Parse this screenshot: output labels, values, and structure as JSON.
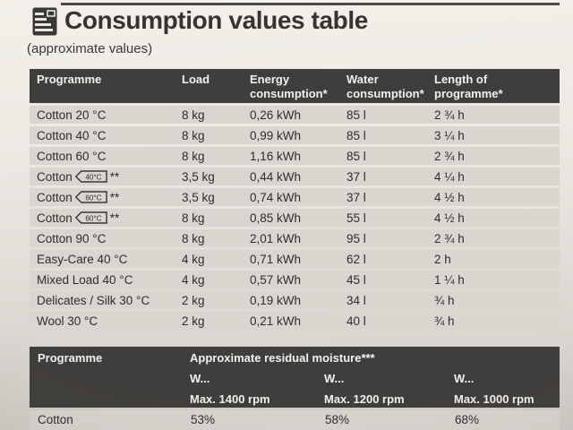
{
  "palette": {
    "header_bg": "#403e3c",
    "header_text": "#f3f1ee",
    "row_bg": "#d9d6d0",
    "page_bg": "#e8e5df",
    "text": "#2e2d2b"
  },
  "title": "Consumption values table",
  "subtitle": "(approximate values)",
  "consumption_table": {
    "headers": [
      "Programme",
      "Load",
      "Energy\nconsumption*",
      "Water\nconsumption*",
      "Length of\nprogramme*"
    ],
    "rows": [
      {
        "programme": "Cotton 20 °C",
        "load": "8 kg",
        "energy": "0,26 kWh",
        "water": "85 l",
        "length": "2 ¾ h"
      },
      {
        "programme": "Cotton 40 °C",
        "load": "8 kg",
        "energy": "0,99 kWh",
        "water": "85 l",
        "length": "3 ¼ h"
      },
      {
        "programme": "Cotton 60 °C",
        "load": "8 kg",
        "energy": "1,16 kWh",
        "water": "85 l",
        "length": "2 ¾ h"
      },
      {
        "programme": "Cotton",
        "tag": "40°C",
        "suffix": "**",
        "load": "3,5 kg",
        "energy": "0,44 kWh",
        "water": "37 l",
        "length": "4 ¼ h"
      },
      {
        "programme": "Cotton",
        "tag": "60°C",
        "suffix": "**",
        "load": "3,5 kg",
        "energy": "0,74 kWh",
        "water": "37 l",
        "length": "4 ½ h"
      },
      {
        "programme": "Cotton",
        "tag": "60°C",
        "suffix": "**",
        "load": "8 kg",
        "energy": "0,85 kWh",
        "water": "55 l",
        "length": "4 ½ h"
      },
      {
        "programme": "Cotton 90 °C",
        "load": "8 kg",
        "energy": "2,01 kWh",
        "water": "95 l",
        "length": "2 ¾ h"
      },
      {
        "programme": "Easy-Care 40 °C",
        "load": "4 kg",
        "energy": "0,71 kWh",
        "water": "62 l",
        "length": "2 h"
      },
      {
        "programme": "Mixed Load 40 °C",
        "load": "4 kg",
        "energy": "0,57 kWh",
        "water": "45 l",
        "length": "1 ¼ h"
      },
      {
        "programme": "Delicates / Silk 30 °C",
        "load": "2 kg",
        "energy": "0,19 kWh",
        "water": "34 l",
        "length": "¾ h"
      },
      {
        "programme": "Wool 30 °C",
        "load": "2 kg",
        "energy": "0,21 kWh",
        "water": "40 l",
        "length": "¾ h"
      }
    ]
  },
  "moisture_table": {
    "programme_header": "Programme",
    "group_header": "Approximate residual moisture***",
    "sub_headers": [
      {
        "w": "W...",
        "max": "Max. 1400 rpm"
      },
      {
        "w": "W...",
        "max": "Max. 1200 rpm"
      },
      {
        "w": "W...",
        "max": "Max. 1000 rpm"
      }
    ],
    "rows": [
      {
        "programme": "Cotton",
        "values": [
          "53%",
          "58%",
          "68%"
        ]
      }
    ]
  }
}
